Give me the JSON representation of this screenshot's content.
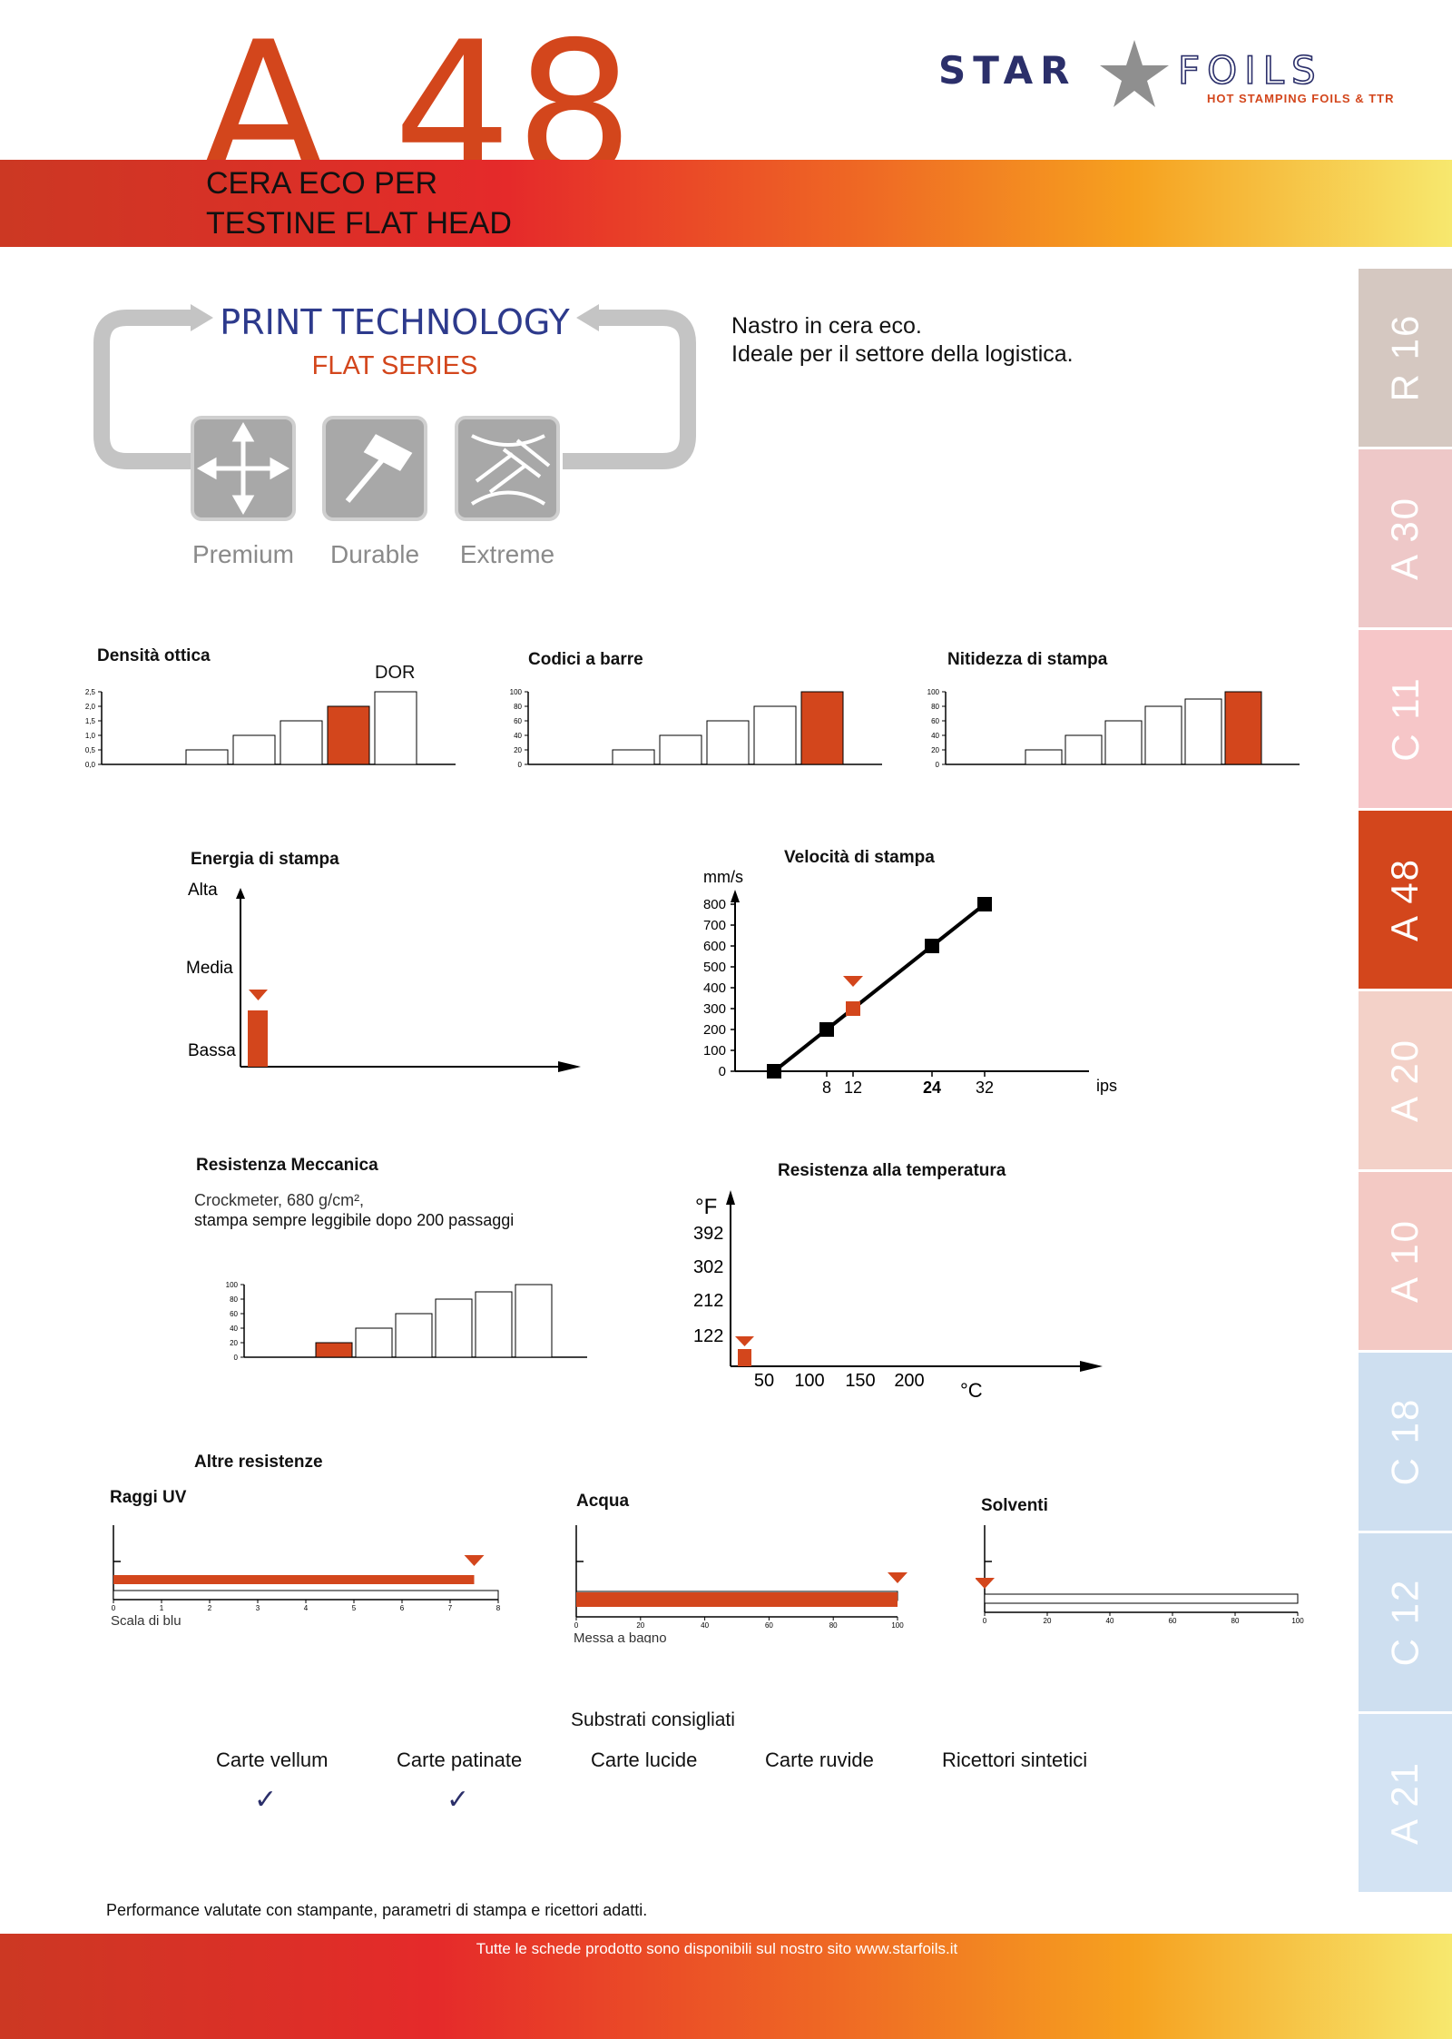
{
  "header": {
    "code": "A 48",
    "subtitle_line1": "CERA ECO PER",
    "subtitle_line2": "TESTINE FLAT HEAD",
    "brand_left": "STAR",
    "brand_right": "FOILS",
    "brand_tagline": "HOT STAMPING FOILS & TTR"
  },
  "print_tech": {
    "title": "PRINT TECHNOLOGY",
    "series": "FLAT SERIES",
    "levels": [
      "Premium",
      "Durable",
      "Extreme"
    ]
  },
  "description": {
    "line1": "Nastro in cera eco.",
    "line2": "Ideale per il settore della logistica."
  },
  "charts_top": {
    "density": {
      "title": "Densità ottica",
      "top_label": "DOR",
      "ticks": [
        "2,5",
        "2,0",
        "1,5",
        "1,0",
        "0,5",
        "0,0"
      ],
      "chart_data": {
        "type": "bar",
        "values": [
          0.5,
          1.0,
          1.5,
          2.0,
          2.5
        ],
        "highlight_index": 3,
        "ylim": [
          0,
          2.5
        ]
      }
    },
    "barcode": {
      "title": "Codici a barre",
      "ticks": [
        "100",
        "80",
        "60",
        "40",
        "20",
        "0"
      ],
      "chart_data": {
        "type": "bar",
        "values": [
          20,
          40,
          60,
          80,
          100
        ],
        "highlight_index": 4,
        "ylim": [
          0,
          100
        ]
      }
    },
    "sharpness": {
      "title": "Nitidezza di stampa",
      "ticks": [
        "100",
        "80",
        "60",
        "40",
        "20",
        "0"
      ],
      "chart_data": {
        "type": "bar",
        "values": [
          20,
          40,
          60,
          80,
          90,
          100
        ],
        "highlight_index": 5,
        "ylim": [
          0,
          100
        ]
      }
    }
  },
  "energy": {
    "title": "Energia di stampa",
    "levels": [
      "Alta",
      "Media",
      "Bassa"
    ],
    "chart_data": {
      "type": "bar",
      "value": "Bassa"
    }
  },
  "speed": {
    "title": "Velocità di stampa",
    "yunit": "mm/s",
    "xunit": "ips",
    "yticks": [
      "800",
      "700",
      "600",
      "500",
      "400",
      "300",
      "200",
      "100",
      "0"
    ],
    "xticks": [
      "8",
      "12",
      "24",
      "32"
    ],
    "chart_data": {
      "type": "line",
      "x": [
        0,
        8,
        12,
        24,
        32
      ],
      "y": [
        0,
        200,
        300,
        600,
        800
      ],
      "highlight_x": 12,
      "ylim": [
        0,
        800
      ]
    }
  },
  "mech": {
    "title": "Resistenza Meccanica",
    "note1": "Crockmeter, 680 g/cm²,",
    "note2": "stampa sempre leggibile dopo 200 passaggi",
    "ticks": [
      "100",
      "80",
      "60",
      "40",
      "20",
      "0"
    ],
    "chart_data": {
      "type": "bar",
      "values": [
        20,
        40,
        60,
        80,
        90,
        100
      ],
      "highlight_index": 0,
      "ylim": [
        0,
        100
      ]
    }
  },
  "temp": {
    "title": "Resistenza alla temperatura",
    "yunit": "°F",
    "xunit": "°C",
    "yticks": [
      "392",
      "302",
      "212",
      "122"
    ],
    "xticks": [
      "50",
      "100",
      "150",
      "200"
    ],
    "chart_data": {
      "type": "bar",
      "value_c": 50
    }
  },
  "other": {
    "title": "Altre resistenze",
    "uv": {
      "title": "Raggi UV",
      "axis_label": "Scala di blu",
      "ticks": [
        "0",
        "1",
        "2",
        "3",
        "4",
        "5",
        "6",
        "7",
        "8"
      ],
      "chart_data": {
        "type": "bar",
        "value": 7.5,
        "max": 8
      }
    },
    "water": {
      "title": "Acqua",
      "axis_label": "Messa a bagno",
      "ticks": [
        "0",
        "20",
        "40",
        "60",
        "80",
        "100"
      ],
      "chart_data": {
        "type": "bar",
        "value": 100,
        "max": 100
      }
    },
    "solvents": {
      "title": "Solventi",
      "ticks": [
        "0",
        "20",
        "40",
        "60",
        "80",
        "100"
      ],
      "chart_data": {
        "type": "bar",
        "value": 0,
        "max": 100
      }
    }
  },
  "substrates": {
    "title": "Substrati consigliati",
    "items": [
      "Carte vellum",
      "Carte patinate",
      "Carte lucide",
      "Carte ruvide",
      "Ricettori sintetici"
    ],
    "checked": [
      true,
      true,
      false,
      false,
      false
    ],
    "check_glyph": "✓"
  },
  "sidebar": {
    "tabs": [
      "R 16",
      "A 30",
      "C 11",
      "A 48",
      "A 20",
      "A 10",
      "C 18",
      "C 12",
      "A 21"
    ],
    "tab_colors": [
      "#d5c8c1",
      "#eec8c8",
      "#f6c6c8",
      "#d3461c",
      "#f3d1c8",
      "#f3c9c4",
      "#cedff0",
      "#cedff0",
      "#d3e3f3"
    ],
    "active_index": 3
  },
  "footer": {
    "performance_note": "Performance valutate con stampante, parametri di stampa e ricettori adatti.",
    "site_note": "Tutte le schede prodotto sono disponibili sul nostro sito www.starfoils.it"
  },
  "colors": {
    "accent": "#d3461c",
    "navy": "#2b2f6a",
    "grey": "#8f8f8f"
  }
}
